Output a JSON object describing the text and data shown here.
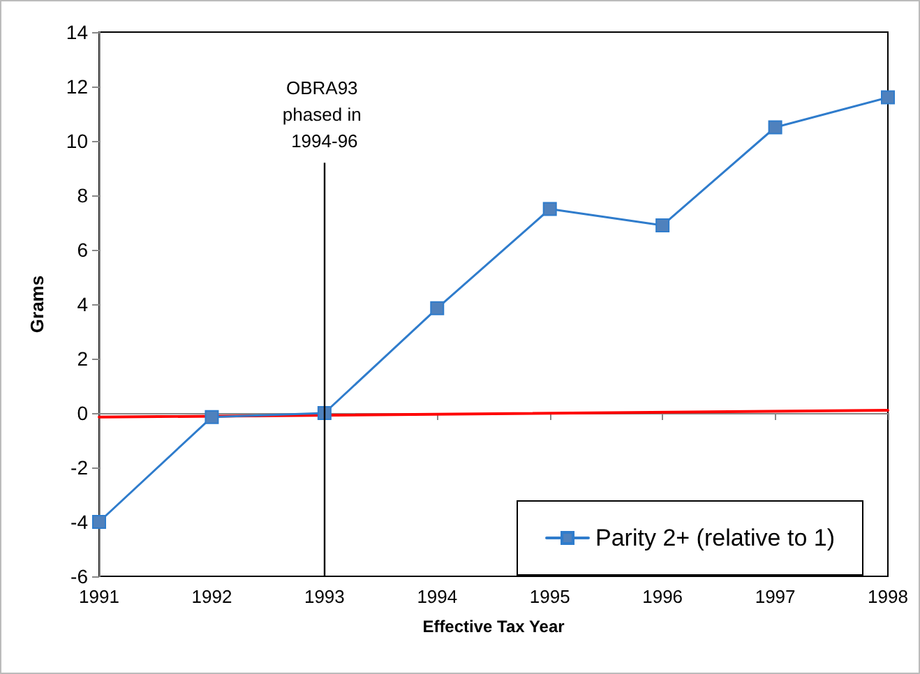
{
  "chart_data": {
    "type": "line",
    "xlabel": "Effective Tax Year",
    "ylabel": "Grams",
    "x": [
      1991,
      1992,
      1993,
      1994,
      1995,
      1996,
      1997,
      1998
    ],
    "series": [
      {
        "name": "Parity 2+ (relative to 1)",
        "color": "#2f7ccc",
        "values": [
          -4,
          -0.15,
          0,
          3.85,
          7.5,
          6.9,
          10.5,
          11.6
        ]
      },
      {
        "type": "line",
        "color": "#ff0000",
        "x": [
          1991,
          1998
        ],
        "values": [
          -0.15,
          0.1
        ],
        "marker": "none"
      }
    ],
    "xlim": [
      1991,
      1998
    ],
    "xticks": [
      1991,
      1992,
      1993,
      1994,
      1995,
      1996,
      1997,
      1998
    ],
    "ylim": [
      -6,
      14
    ],
    "yticks": [
      -6,
      -4,
      -2,
      0,
      2,
      4,
      6,
      8,
      10,
      12,
      14
    ],
    "ref_lines": [
      {
        "axis": "x",
        "value": 1993,
        "label": "OBRA93 phased in 1994-96",
        "color": "#000000"
      }
    ],
    "grid": false,
    "legend": "bottom right",
    "marker": "square",
    "line_style": "solid"
  }
}
